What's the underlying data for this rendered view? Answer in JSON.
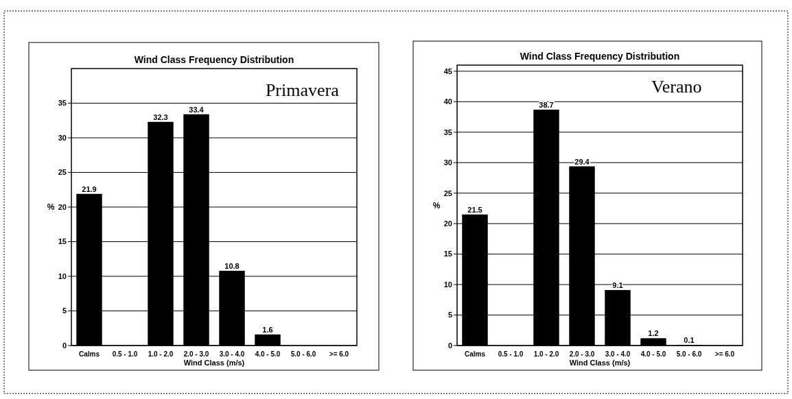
{
  "chart_data": [
    {
      "type": "bar",
      "title": "Wind Class Frequency Distribution",
      "xlabel": "Wind Class (m/s)",
      "ylabel": "%",
      "annotations": [
        "Primavera"
      ],
      "categories": [
        "Calms",
        "0.5 - 1.0",
        "1.0 - 2.0",
        "2.0 - 3.0",
        "3.0 - 4.0",
        "4.0 - 5.0",
        "5.0 - 6.0",
        ">= 6.0"
      ],
      "values": [
        21.9,
        0,
        32.3,
        33.4,
        10.8,
        1.6,
        0,
        0
      ],
      "value_labels": [
        "21.9",
        null,
        "32.3",
        "33.4",
        "10.8",
        "1.6",
        null,
        null
      ],
      "color": "#000000",
      "ylim": [
        0,
        40
      ],
      "yticks": [
        0,
        5,
        10,
        15,
        20,
        25,
        30,
        35
      ],
      "grid": "y"
    },
    {
      "type": "bar",
      "title": "Wind Class Frequency Distribution",
      "xlabel": "Wind Class (m/s)",
      "ylabel": "%",
      "annotations": [
        "Verano"
      ],
      "categories": [
        "Calms",
        "0.5 - 1.0",
        "1.0 - 2.0",
        "2.0 - 3.0",
        "3.0 - 4.0",
        "4.0 - 5.0",
        "5.0 - 6.0",
        ">= 6.0"
      ],
      "values": [
        21.5,
        0,
        38.7,
        29.4,
        9.1,
        1.2,
        0.1,
        0
      ],
      "value_labels": [
        "21.5",
        null,
        "38.7",
        "29.4",
        "9.1",
        "1.2",
        "0.1",
        null
      ],
      "color": "#000000",
      "ylim": [
        0,
        46
      ],
      "yticks": [
        0,
        5,
        10,
        15,
        20,
        25,
        30,
        35,
        40,
        45
      ],
      "grid": "y"
    }
  ]
}
